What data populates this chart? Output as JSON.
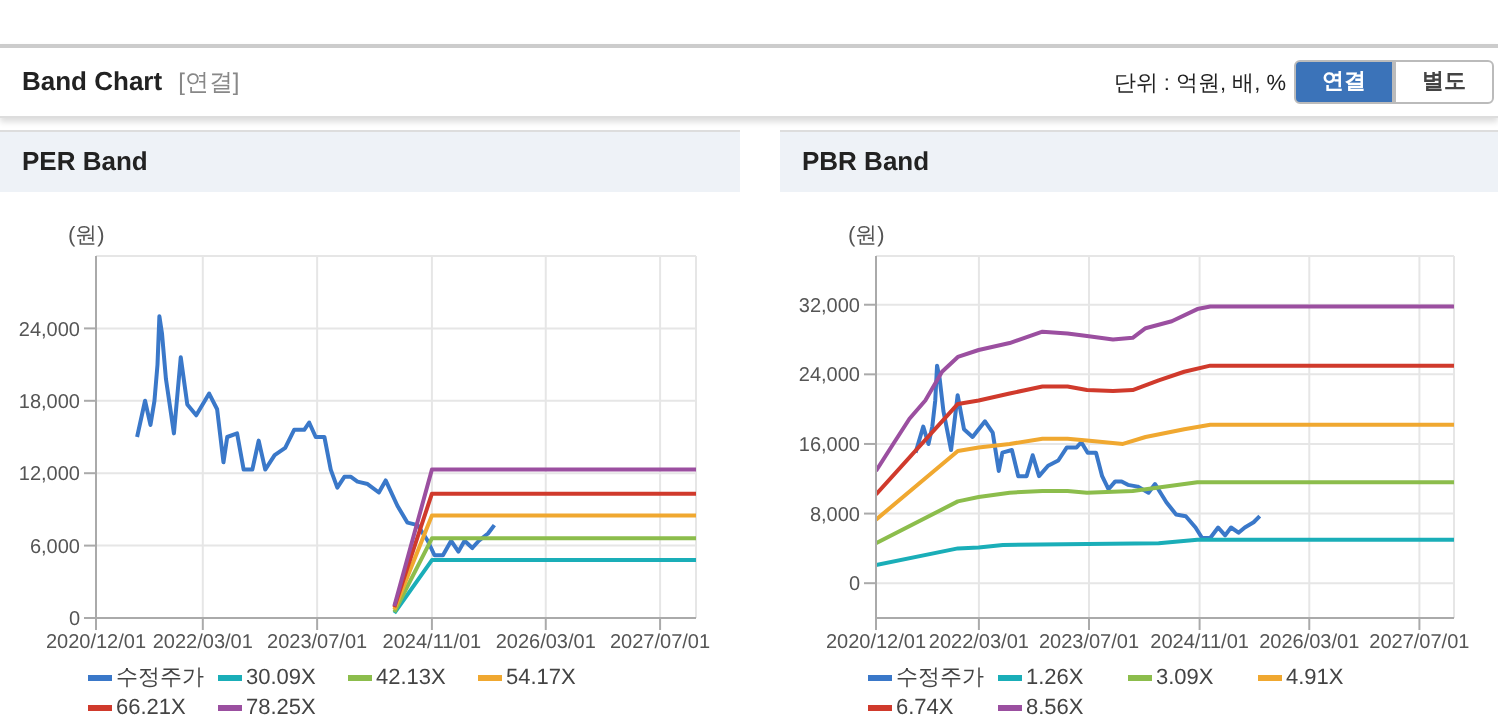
{
  "chart_data": [
    {
      "type": "other",
      "title": "Band Chart",
      "annotations": [
        "[연결]",
        "단위 : 억원, 배, %",
        "연결",
        "별도"
      ]
    },
    {
      "type": "line",
      "title": "PER Band",
      "ylabel": "(원)",
      "xlim": [
        "2020-12-01",
        "2027-12-01"
      ],
      "xticks": [
        {
          "value": "2020-12-01",
          "label": "2020/12/01"
        },
        {
          "value": "2022-03-01",
          "label": "2022/03/01"
        },
        {
          "value": "2023-07-01",
          "label": "2023/07/01"
        },
        {
          "value": "2024-11-01",
          "label": "2024/11/01"
        },
        {
          "value": "2026-03-01",
          "label": "2026/03/01"
        },
        {
          "value": "2027-07-01",
          "label": "2027/07/01"
        }
      ],
      "ylim": [
        0,
        30000
      ],
      "yticks": [
        {
          "value": 0,
          "label": "0"
        },
        {
          "value": 6000,
          "label": "6,000"
        },
        {
          "value": 12000,
          "label": "12,000"
        },
        {
          "value": 18000,
          "label": "18,000"
        },
        {
          "value": 24000,
          "label": "24,000"
        }
      ],
      "grid": true,
      "legend": "bottom",
      "marker": "none",
      "line_style": "solid",
      "series": [
        {
          "name": "수정주가",
          "color": "#3a78c9",
          "x": [
            "2021-05-25",
            "2021-06-28",
            "2021-07-21",
            "2021-08-07",
            "2021-08-20",
            "2021-08-28",
            "2021-09-08",
            "2021-09-25",
            "2021-10-29",
            "2021-11-27",
            "2021-12-25",
            "2022-02-01",
            "2022-03-28",
            "2022-05-01",
            "2022-05-28",
            "2022-06-13",
            "2022-07-25",
            "2022-08-22",
            "2022-09-28",
            "2022-10-25",
            "2022-11-22",
            "2023-01-01",
            "2023-02-15",
            "2023-03-25",
            "2023-05-07",
            "2023-05-28",
            "2023-06-25",
            "2023-08-01",
            "2023-08-28",
            "2023-09-25",
            "2023-10-25",
            "2023-11-22",
            "2023-12-20",
            "2024-02-01",
            "2024-03-20",
            "2024-04-18",
            "2024-06-07",
            "2024-07-20",
            "2024-09-01",
            "2024-10-14",
            "2024-11-12",
            "2024-12-18",
            "2025-01-22",
            "2025-02-22",
            "2025-03-20",
            "2025-04-22",
            "2025-05-20",
            "2025-06-28",
            "2025-07-25"
          ],
          "values": [
            15000,
            18000,
            16000,
            18000,
            21000,
            25000,
            23600,
            19800,
            15300,
            21600,
            17700,
            16800,
            18600,
            17300,
            12900,
            15000,
            15300,
            12300,
            12300,
            14700,
            12300,
            13500,
            14100,
            15600,
            15600,
            16200,
            15000,
            15000,
            12300,
            10800,
            11700,
            11700,
            11300,
            11100,
            10400,
            11400,
            9300,
            7900,
            7700,
            6400,
            5200,
            5200,
            6400,
            5500,
            6400,
            5800,
            6400,
            7000,
            7700
          ]
        },
        {
          "name": "30.09X",
          "color": "#1aaeb8",
          "x": [
            "2024-05-25",
            "2024-11-01",
            "2027-12-01"
          ],
          "values": [
            400,
            4800,
            4800
          ]
        },
        {
          "name": "42.13X",
          "color": "#8cbd4c",
          "x": [
            "2024-05-25",
            "2024-11-01",
            "2027-12-01"
          ],
          "values": [
            500,
            6600,
            6600
          ]
        },
        {
          "name": "54.17X",
          "color": "#f0a830",
          "x": [
            "2024-05-25",
            "2024-11-01",
            "2027-12-01"
          ],
          "values": [
            700,
            8500,
            8500
          ]
        },
        {
          "name": "66.21X",
          "color": "#d03a2c",
          "x": [
            "2024-05-25",
            "2024-11-01",
            "2027-12-01"
          ],
          "values": [
            900,
            10300,
            10300
          ]
        },
        {
          "name": "78.25X",
          "color": "#9b4fa0",
          "x": [
            "2024-05-25",
            "2024-11-01",
            "2027-12-01"
          ],
          "values": [
            1000,
            12300,
            12300
          ]
        }
      ]
    },
    {
      "type": "line",
      "title": "PBR Band",
      "ylabel": "(원)",
      "xlim": [
        "2020-12-01",
        "2027-12-01"
      ],
      "xticks": [
        {
          "value": "2020-12-01",
          "label": "2020/12/01"
        },
        {
          "value": "2022-03-01",
          "label": "2022/03/01"
        },
        {
          "value": "2023-07-01",
          "label": "2023/07/01"
        },
        {
          "value": "2024-11-01",
          "label": "2024/11/01"
        },
        {
          "value": "2026-03-01",
          "label": "2026/03/01"
        },
        {
          "value": "2027-07-01",
          "label": "2027/07/01"
        }
      ],
      "ylim": [
        -4000,
        37600
      ],
      "yticks": [
        {
          "value": 0,
          "label": "0"
        },
        {
          "value": 8000,
          "label": "8,000"
        },
        {
          "value": 16000,
          "label": "16,000"
        },
        {
          "value": 24000,
          "label": "24,000"
        },
        {
          "value": 32000,
          "label": "32,000"
        }
      ],
      "grid": true,
      "legend": "bottom",
      "marker": "none",
      "line_style": "solid",
      "series": [
        {
          "name": "수정주가",
          "color": "#3a78c9",
          "x": [
            "2021-05-25",
            "2021-06-28",
            "2021-07-21",
            "2021-08-07",
            "2021-08-20",
            "2021-08-28",
            "2021-09-08",
            "2021-09-25",
            "2021-10-29",
            "2021-11-27",
            "2021-12-25",
            "2022-02-01",
            "2022-03-28",
            "2022-05-01",
            "2022-05-28",
            "2022-06-13",
            "2022-07-25",
            "2022-08-22",
            "2022-09-28",
            "2022-10-25",
            "2022-11-22",
            "2023-01-01",
            "2023-02-15",
            "2023-03-25",
            "2023-05-07",
            "2023-05-28",
            "2023-06-25",
            "2023-08-01",
            "2023-08-28",
            "2023-09-25",
            "2023-10-25",
            "2023-11-22",
            "2023-12-20",
            "2024-02-01",
            "2024-03-20",
            "2024-04-18",
            "2024-06-07",
            "2024-07-20",
            "2024-09-01",
            "2024-10-14",
            "2024-11-12",
            "2024-12-18",
            "2025-01-22",
            "2025-02-22",
            "2025-03-20",
            "2025-04-22",
            "2025-05-20",
            "2025-06-28",
            "2025-07-25"
          ],
          "values": [
            15000,
            18000,
            16000,
            18000,
            21000,
            25000,
            23600,
            19800,
            15300,
            21600,
            17700,
            16800,
            18600,
            17300,
            12900,
            15000,
            15300,
            12300,
            12300,
            14700,
            12300,
            13500,
            14100,
            15600,
            15600,
            16200,
            15000,
            15000,
            12300,
            10800,
            11700,
            11700,
            11300,
            11100,
            10400,
            11400,
            9300,
            7900,
            7700,
            6400,
            5200,
            5200,
            6400,
            5500,
            6400,
            5800,
            6400,
            7000,
            7700
          ]
        },
        {
          "name": "1.26X",
          "color": "#1aaeb8",
          "x": [
            "2020-12-01",
            "2021-11-28",
            "2022-02-28",
            "2022-06-15",
            "2024-05-04",
            "2024-10-22",
            "2027-12-01"
          ],
          "values": [
            2100,
            4000,
            4100,
            4400,
            4600,
            5000,
            5000
          ]
        },
        {
          "name": "3.09X",
          "color": "#8cbd4c",
          "x": [
            "2020-12-01",
            "2021-11-28",
            "2022-02-28",
            "2022-07-15",
            "2022-12-07",
            "2023-03-28",
            "2023-06-22",
            "2024-01-10",
            "2024-05-04",
            "2024-10-22",
            "2027-12-01"
          ],
          "values": [
            4600,
            9400,
            9900,
            10400,
            10600,
            10600,
            10400,
            10600,
            11000,
            11600,
            11600
          ]
        },
        {
          "name": "4.91X",
          "color": "#f0a830",
          "x": [
            "2020-12-01",
            "2021-11-28",
            "2022-02-28",
            "2022-07-15",
            "2022-12-07",
            "2023-03-28",
            "2023-06-22",
            "2023-11-28",
            "2024-03-07",
            "2024-08-25",
            "2024-12-18",
            "2027-12-01"
          ],
          "values": [
            7300,
            15200,
            15600,
            16000,
            16600,
            16600,
            16400,
            16000,
            16800,
            17700,
            18200,
            18200
          ]
        },
        {
          "name": "6.74X",
          "color": "#d03a2c",
          "x": [
            "2020-12-01",
            "2021-11-28",
            "2022-02-28",
            "2022-07-15",
            "2022-12-07",
            "2023-03-28",
            "2023-06-22",
            "2023-10-15",
            "2024-01-10",
            "2024-05-04",
            "2024-08-25",
            "2024-12-18",
            "2027-12-01"
          ],
          "values": [
            10200,
            20600,
            21000,
            21800,
            22600,
            22600,
            22200,
            22100,
            22200,
            23300,
            24300,
            25000,
            25000
          ]
        },
        {
          "name": "8.56X",
          "color": "#9b4fa0",
          "x": [
            "2020-12-01",
            "2021-02-15",
            "2021-04-28",
            "2021-07-07",
            "2021-09-19",
            "2021-11-28",
            "2022-02-28",
            "2022-07-15",
            "2022-12-07",
            "2023-03-28",
            "2023-06-22",
            "2023-10-15",
            "2024-01-10",
            "2024-03-07",
            "2024-07-01",
            "2024-10-22",
            "2024-12-18",
            "2027-12-01"
          ],
          "values": [
            12900,
            16000,
            18900,
            21000,
            24300,
            26000,
            26800,
            27600,
            28900,
            28700,
            28400,
            28000,
            28200,
            29300,
            30100,
            31500,
            31800,
            31800
          ]
        }
      ]
    }
  ]
}
